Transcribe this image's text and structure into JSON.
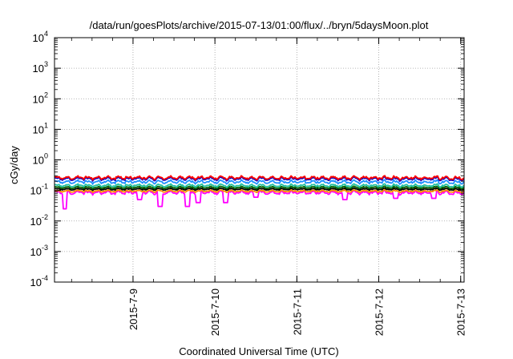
{
  "chart_data": {
    "type": "line",
    "title": "/data/run/goesPlots/archive/2015-07-13/01:00/flux/../bryn/5daysMoon.plot",
    "xlabel": "Coordinated Universal Time (UTC)",
    "ylabel": "cGy/day",
    "x_range": [
      "2015-07-08 01:00",
      "2015-07-13 01:00"
    ],
    "x_ticks": [
      "2015-7-9",
      "2015-7-10",
      "2015-7-11",
      "2015-7-12",
      "2015-7-13"
    ],
    "y_scale": "log",
    "ylim": [
      0.0001,
      10000
    ],
    "y_ticks": [
      {
        "value": 0.0001,
        "base": "10",
        "exp": "-4"
      },
      {
        "value": 0.001,
        "base": "10",
        "exp": "-3"
      },
      {
        "value": 0.01,
        "base": "10",
        "exp": "-2"
      },
      {
        "value": 0.1,
        "base": "10",
        "exp": "-1"
      },
      {
        "value": 1,
        "base": "10",
        "exp": "0"
      },
      {
        "value": 10,
        "base": "10",
        "exp": "1"
      },
      {
        "value": 100,
        "base": "10",
        "exp": "2"
      },
      {
        "value": 1000,
        "base": "10",
        "exp": "3"
      },
      {
        "value": 10000,
        "base": "10",
        "exp": "4"
      }
    ],
    "grid": true,
    "legend": "none",
    "series": [
      {
        "color": "#ff0000",
        "base_level": 0.26,
        "spread": 0.18,
        "dips": []
      },
      {
        "color": "#0000cc",
        "base_level": 0.24,
        "spread": 0.18,
        "dips": []
      },
      {
        "color": "#1e90ff",
        "base_level": 0.19,
        "spread": 0.18,
        "dips": []
      },
      {
        "color": "#20c0a0",
        "base_level": 0.145,
        "spread": 0.15,
        "dips": []
      },
      {
        "color": "#006400",
        "base_level": 0.125,
        "spread": 0.12,
        "dips": []
      },
      {
        "color": "#000000",
        "base_level": 0.11,
        "spread": 0.1,
        "dips": []
      },
      {
        "color": "#ff8c00",
        "base_level": 0.095,
        "spread": 0.12,
        "dips": []
      },
      {
        "color": "#ff00ff",
        "base_level": 0.085,
        "spread": 0.2,
        "dips": [
          {
            "x": "2015-07-08 04:00",
            "value": 0.025
          },
          {
            "x": "2015-07-09 02:00",
            "value": 0.05
          },
          {
            "x": "2015-07-09 08:00",
            "value": 0.03
          },
          {
            "x": "2015-07-09 16:00",
            "value": 0.03
          },
          {
            "x": "2015-07-09 19:00",
            "value": 0.04
          },
          {
            "x": "2015-07-10 03:00",
            "value": 0.04
          },
          {
            "x": "2015-07-10 12:00",
            "value": 0.06
          },
          {
            "x": "2015-07-11 14:00",
            "value": 0.05
          },
          {
            "x": "2015-07-12 05:00",
            "value": 0.055
          },
          {
            "x": "2015-07-12 16:00",
            "value": 0.055
          }
        ]
      }
    ]
  }
}
